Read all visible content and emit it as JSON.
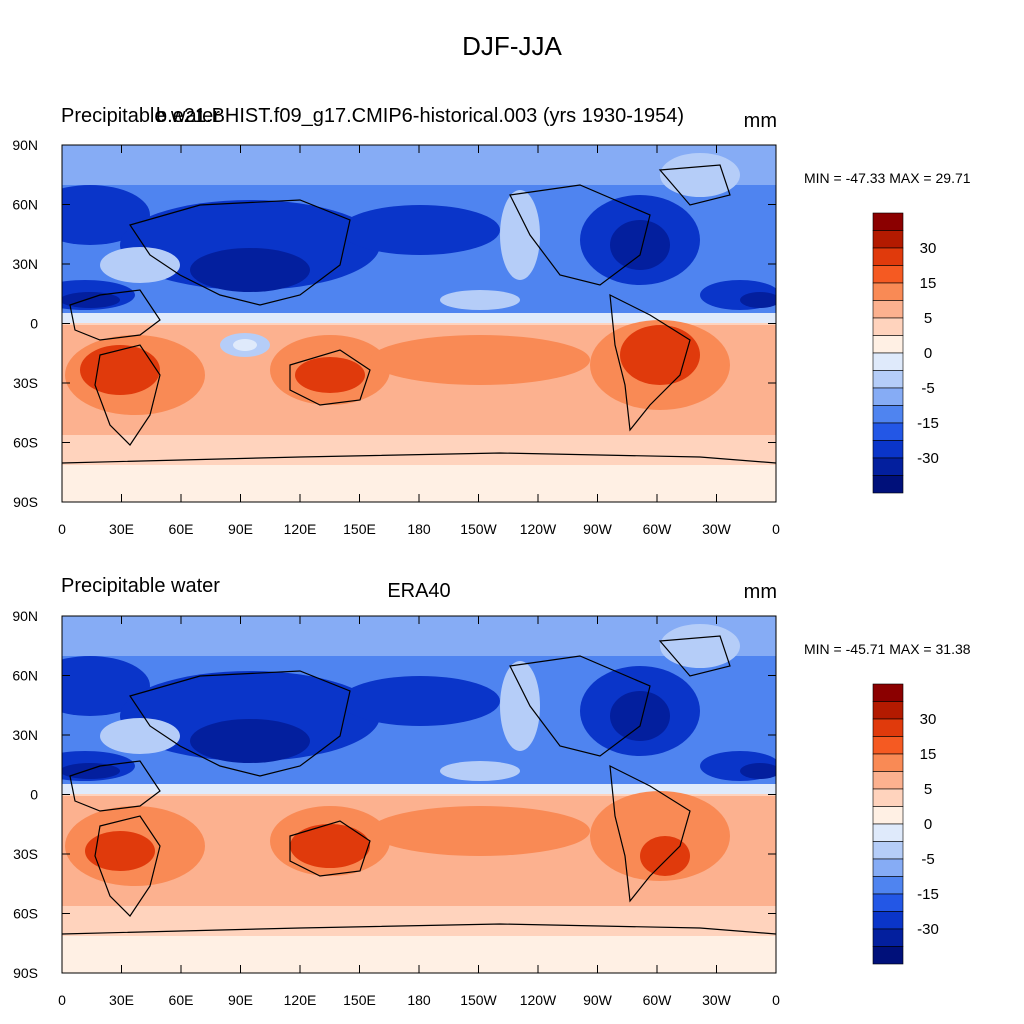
{
  "figure": {
    "title": "DJF-JJA"
  },
  "panels": [
    {
      "left_label": "Precipitable water",
      "center_label": "b.e21.BHIST.f09_g17.CMIP6-historical.003 (yrs 1930-1954)",
      "right_label": "mm",
      "minmax": "MIN = -47.33 MAX =  29.71"
    },
    {
      "left_label": "Precipitable water",
      "center_label": "ERA40",
      "right_label": "mm",
      "minmax": "MIN = -45.71 MAX =  31.38"
    }
  ],
  "axes": {
    "lat_ticks": [
      "90N",
      "60N",
      "30N",
      "0",
      "30S",
      "60S",
      "90S"
    ],
    "lon_ticks": [
      "0",
      "30E",
      "60E",
      "90E",
      "120E",
      "150E",
      "180",
      "150W",
      "120W",
      "90W",
      "60W",
      "30W",
      "0"
    ]
  },
  "colorbar": {
    "labels": [
      "30",
      "15",
      "5",
      "0",
      "-5",
      "-15",
      "-30"
    ],
    "colors": [
      "#8b0000",
      "#b31a00",
      "#e03a0c",
      "#f55a22",
      "#f98a55",
      "#fcb18f",
      "#ffd3bd",
      "#fff0e4",
      "#dfeafb",
      "#b5cdf8",
      "#86acf5",
      "#4f84f0",
      "#2357e6",
      "#0a35c9",
      "#031f9e",
      "#00107a"
    ]
  },
  "map": {
    "colors": {
      "ocean_tropic_pos": "#fcb18f",
      "ocean_midlat_pos": "#ffd3bd",
      "antarctic": "#fff0e4",
      "strong_pos": "#e03a0c",
      "mid_pos": "#f98a55",
      "north_neg": "#4f84f0",
      "north_strong": "#0a35c9",
      "north_deep": "#031f9e",
      "arctic": "#86acf5",
      "light_blue": "#b5cdf8",
      "very_light": "#dfeafb"
    }
  }
}
